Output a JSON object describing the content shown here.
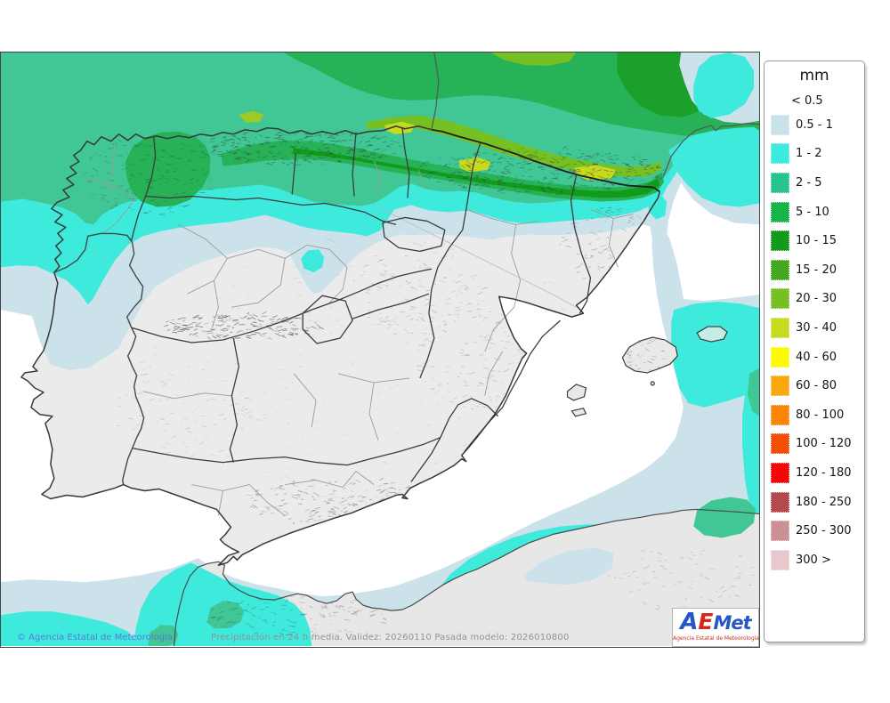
{
  "legend": {
    "title": "mm",
    "no_swatch_label": "< 0.5",
    "items": [
      {
        "label": "0.5 - 1",
        "color": "#c9e2ea"
      },
      {
        "label": "1 - 2",
        "color": "#3eeadc"
      },
      {
        "label": "2 - 5",
        "color": "#25c48d"
      },
      {
        "label": "5 - 10",
        "color": "#17b448"
      },
      {
        "label": "10 - 15",
        "color": "#129a1b"
      },
      {
        "label": "15 - 20",
        "color": "#43a81e"
      },
      {
        "label": "20 - 30",
        "color": "#76c023"
      },
      {
        "label": "30 - 40",
        "color": "#c6da20"
      },
      {
        "label": "40 - 60",
        "color": "#fdf805"
      },
      {
        "label": "60 - 80",
        "color": "#f9a90e"
      },
      {
        "label": "80 - 100",
        "color": "#f88508"
      },
      {
        "label": "100 - 120",
        "color": "#f44d06"
      },
      {
        "label": "120 - 180",
        "color": "#f50505"
      },
      {
        "label": "180 - 250",
        "color": "#b4494e"
      },
      {
        "label": "250 - 300",
        "color": "#cd8f96"
      },
      {
        "label": "300 >",
        "color": "#e9c8cd"
      }
    ]
  },
  "footer": {
    "copyright": "© Agencia Estatal de Meteorología",
    "caption": "Precipitación en 24 h media. Validez: 20260110 Pasada modelo: 2026010800"
  },
  "logo": {
    "part_a": "A",
    "part_e": "E",
    "part_met": "Met",
    "subtitle": "Agencia Estatal de Meteorología"
  }
}
